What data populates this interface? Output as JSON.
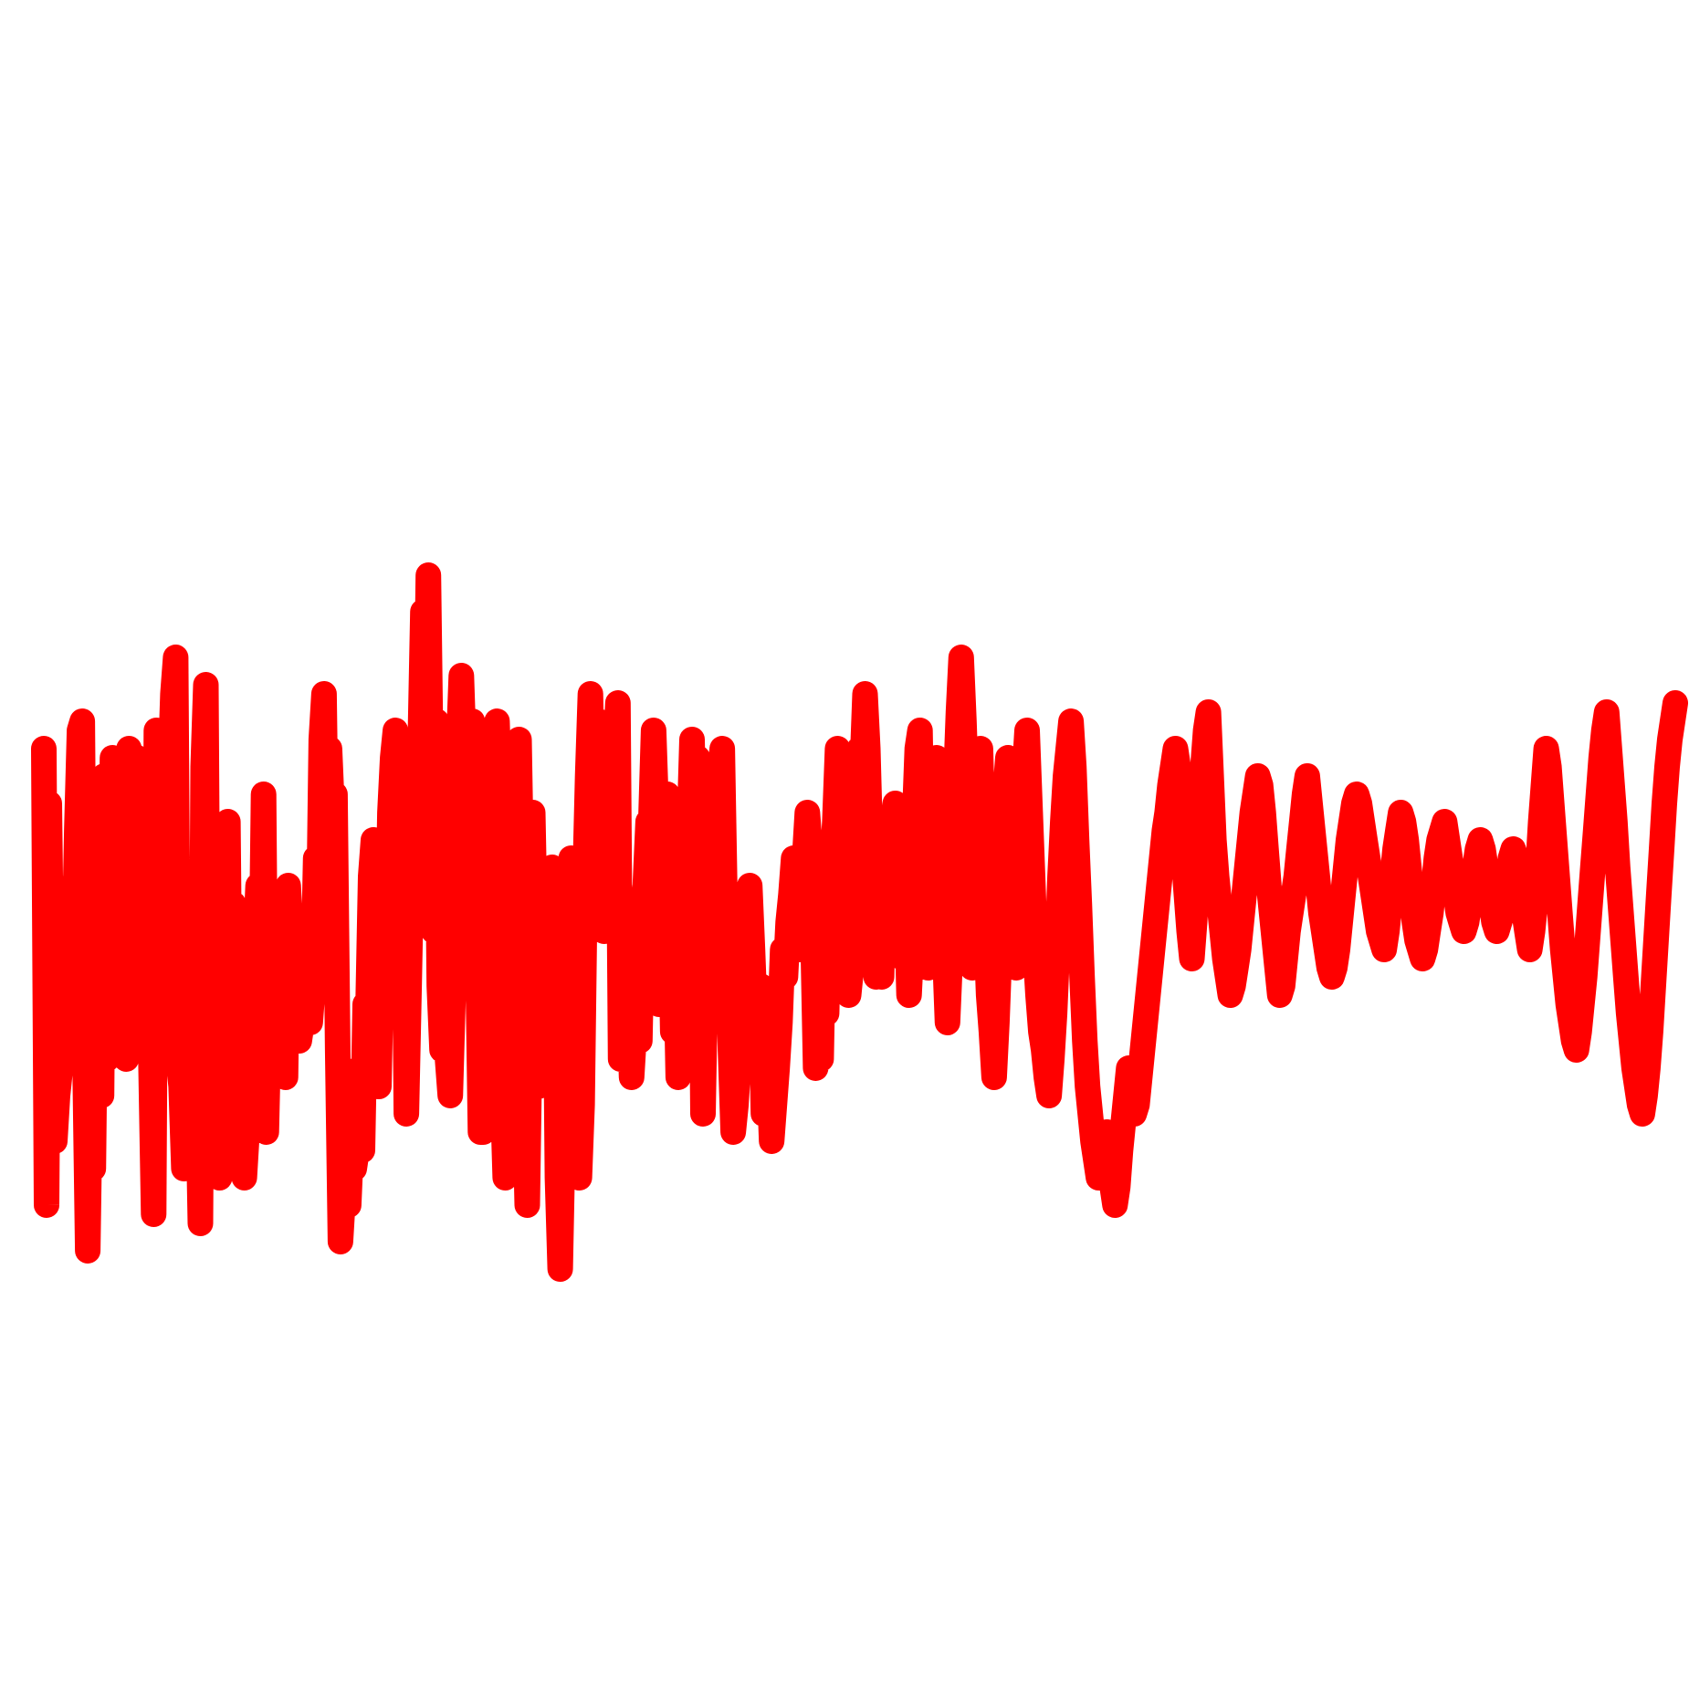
{
  "chart_data": {
    "type": "line",
    "title": "",
    "xlabel": "",
    "ylabel": "",
    "axes_visible": false,
    "grid": false,
    "legend": "none",
    "ylim": [
      0,
      100
    ],
    "series": [
      {
        "color": "#ff0000",
        "values": [
          60,
          10,
          54,
          30,
          17,
          22,
          25,
          28,
          42,
          32,
          45,
          36,
          51,
          62,
          63,
          26,
          5,
          25,
          14,
          41,
          46,
          22,
          57,
          26,
          35,
          59,
          45,
          44,
          30,
          55,
          26,
          60,
          53,
          30,
          59,
          44,
          51,
          46,
          42,
          26,
          9,
          62,
          55,
          30,
          30,
          45,
          57,
          66,
          70,
          26,
          23,
          14,
          22,
          41,
          40,
          30,
          24,
          8,
          58,
          67,
          19,
          39,
          41,
          24,
          13,
          37,
          50,
          52,
          21,
          43,
          40,
          17,
          34,
          13,
          18,
          40,
          28,
          38,
          45,
          31,
          55,
          18,
          31,
          40,
          35,
          28,
          28,
          37,
          24,
          45,
          39,
          28,
          32,
          28,
          30,
          30,
          30,
          30,
          34,
          48,
          38,
          61,
          66,
          44,
          60,
          53,
          55,
          27,
          6,
          11,
          12,
          10,
          17,
          14,
          16,
          25,
          16,
          32,
          31,
          46,
          50,
          35,
          23,
          38,
          49,
          37,
          53,
          59,
          62,
          45,
          56,
          53,
          20,
          34,
          49,
          59,
          49,
          60,
          75,
          58,
          79,
          56,
          40,
          63,
          34,
          27,
          30,
          26,
          22,
          33,
          44,
          60,
          68,
          59,
          49,
          55,
          63,
          62,
          38,
          18,
          18,
          24,
          41,
          43,
          60,
          63,
          53,
          23,
          13,
          22,
          38,
          18,
          26,
          61,
          44,
          23,
          10,
          30,
          53,
          38,
          23,
          28,
          35,
          28,
          40,
          47,
          45,
          13,
          3,
          18,
          24,
          39,
          48,
          38,
          24,
          13,
          21,
          45,
          57,
          66,
          51,
          49,
          63,
          57,
          40,
          44,
          49,
          56,
          59,
          65,
          26,
          31,
          32,
          34,
          24,
          29,
          38,
          28,
          43,
          45,
          52,
          52,
          62,
          53,
          32,
          46,
          40,
          55,
          45,
          29,
          39,
          24,
          33,
          44,
          42,
          51,
          61,
          46,
          59,
          52,
          20,
          37,
          44,
          55,
          47,
          38,
          57,
          60,
          43,
          37,
          27,
          18,
          21,
          26,
          28,
          33,
          40,
          45,
          38,
          30,
          28,
          34,
          20,
          23,
          25,
          17,
          21,
          25,
          30,
          38,
          35,
          41,
          44,
          48,
          43,
          38,
          44,
          48,
          53,
          49,
          40,
          25,
          33,
          26,
          42,
          31,
          44,
          47,
          52,
          60,
          56,
          48,
          41,
          33,
          36,
          46,
          56,
          60,
          58,
          66,
          60,
          49,
          43,
          35,
          41,
          35,
          48,
          40,
          45,
          52,
          54,
          48,
          42,
          37,
          45,
          33,
          39,
          52,
          60,
          62,
          44,
          38,
          36,
          46,
          51,
          59,
          52,
          46,
          38,
          30,
          37,
          48,
          56,
          64,
          70,
          63,
          54,
          42,
          36,
          44,
          53,
          60,
          50,
          41,
          33,
          29,
          24,
          30,
          38,
          47,
          55,
          59,
          51,
          43,
          36,
          41,
          50,
          57,
          62,
          54,
          46,
          38,
          33,
          29,
          27,
          24,
          22,
          26,
          31,
          38,
          46,
          52,
          57,
          60,
          63,
          58,
          50,
          43,
          35,
          28,
          23,
          20,
          17,
          15,
          13,
          14,
          16,
          18,
          15,
          12,
          10,
          12,
          16,
          19,
          22,
          25,
          23,
          20,
          21,
          24,
          27,
          30,
          33,
          36,
          39,
          42,
          45,
          48,
          51,
          53,
          56,
          58,
          60,
          58,
          53,
          48,
          44,
          40,
          37,
          41,
          46,
          52,
          58,
          62,
          64,
          57,
          50,
          46,
          43,
          40,
          37,
          35,
          33,
          34,
          36,
          38,
          41,
          44,
          47,
          50,
          53,
          55,
          57,
          56,
          53,
          49,
          45,
          42,
          39,
          36,
          33,
          34,
          37,
          40,
          42,
          44,
          46,
          49,
          52,
          55,
          57,
          54,
          51,
          48,
          45,
          42,
          40,
          38,
          36,
          35,
          36,
          38,
          41,
          44,
          47,
          50,
          52,
          54,
          55,
          54,
          52,
          50,
          48,
          46,
          44,
          42,
          40,
          39,
          38,
          40,
          43,
          46,
          49,
          51,
          53,
          52,
          50,
          47,
          44,
          41,
          39,
          38,
          37,
          38,
          40,
          42,
          45,
          48,
          50,
          51,
          52,
          50,
          48,
          46,
          44,
          42,
          41,
          40,
          41,
          43,
          45,
          47,
          49,
          50,
          49,
          47,
          45,
          43,
          41,
          40,
          41,
          42,
          44,
          46,
          48,
          49,
          48,
          46,
          44,
          42,
          40,
          38,
          40,
          43,
          47,
          52,
          56,
          60,
          58,
          54,
          50,
          46,
          42,
          38,
          35,
          32,
          30,
          28,
          27,
          29,
          32,
          35,
          39,
          43,
          47,
          51,
          55,
          59,
          62,
          64,
          60,
          56,
          52,
          47,
          43,
          39,
          35,
          31,
          28,
          25,
          23,
          21,
          20,
          22,
          25,
          29,
          34,
          39,
          44,
          49,
          54,
          58,
          61,
          63,
          65
        ]
      }
    ]
  }
}
